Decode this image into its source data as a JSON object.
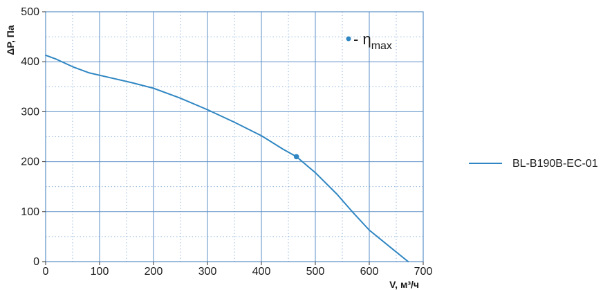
{
  "chart_data": {
    "type": "line",
    "xlabel": "V, м³/ч",
    "ylabel": "ΔP, Па",
    "xlim": [
      0,
      700
    ],
    "ylim": [
      0,
      500
    ],
    "x_ticks": [
      0,
      100,
      200,
      300,
      400,
      500,
      600,
      700
    ],
    "y_ticks": [
      0,
      100,
      200,
      300,
      400,
      500
    ],
    "x_minor_step": 50,
    "y_minor_step": 50,
    "grid": true,
    "legend_position": "right",
    "line_color": "#2f86c2",
    "grid_color": "#5b8fc7",
    "series": [
      {
        "name": "BL-B190B-EC-01",
        "x": [
          0,
          20,
          50,
          80,
          120,
          160,
          200,
          250,
          300,
          350,
          400,
          440,
          465,
          500,
          540,
          570,
          600,
          640,
          672
        ],
        "y": [
          413,
          405,
          390,
          378,
          368,
          358,
          347,
          327,
          304,
          279,
          252,
          225,
          210,
          178,
          135,
          98,
          63,
          28,
          0
        ]
      }
    ],
    "annotations": [
      {
        "marker": "•",
        "prefix": "- ",
        "symbol": "η",
        "subscript": "max",
        "x": 465,
        "y": 210
      }
    ]
  }
}
